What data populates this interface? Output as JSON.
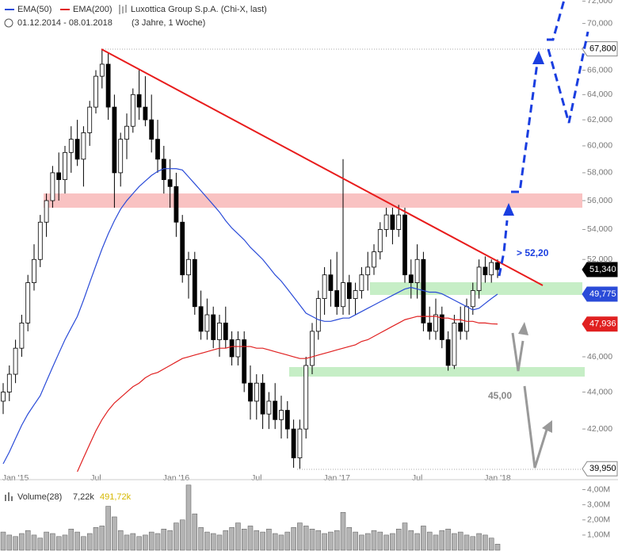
{
  "chart_data": [
    {
      "type": "candlestick",
      "title": "Luxottica Group S.p.A. (Chi-X, last)",
      "subtitle": "01.12.2014 - 08.01.2018",
      "period": "(3 Jahre, 1 Woche)",
      "categories": [
        null,
        null,
        "Jan '15",
        null,
        null,
        null,
        null,
        null,
        null,
        null,
        null,
        null,
        null,
        null,
        null,
        "Jul",
        null,
        null,
        null,
        null,
        null,
        null,
        null,
        null,
        null,
        null,
        null,
        null,
        "Jan '16",
        null,
        null,
        null,
        null,
        null,
        null,
        null,
        null,
        null,
        null,
        null,
        null,
        "Jul",
        null,
        null,
        null,
        null,
        null,
        null,
        null,
        null,
        null,
        null,
        null,
        null,
        "Jan '17",
        null,
        null,
        null,
        null,
        null,
        null,
        null,
        null,
        null,
        null,
        null,
        null,
        "Jul",
        null,
        null,
        null,
        null,
        null,
        null,
        null,
        null,
        null,
        null,
        null,
        null,
        "Jan '18"
      ],
      "open": [
        43.5,
        44,
        45,
        46.5,
        48,
        50.5,
        52,
        54.5,
        56,
        58,
        57.5,
        59.5,
        60.5,
        59,
        61,
        63,
        65.5,
        66.5,
        63,
        58,
        60.5,
        61.5,
        64,
        63,
        62,
        60.5,
        59,
        57.5,
        57,
        54.5,
        51,
        52,
        49,
        47.5,
        48.5,
        47,
        48,
        47,
        46,
        47,
        44.5,
        43.5,
        44.5,
        42.8,
        43.5,
        42.5,
        43,
        42,
        40.5,
        42,
        45.5,
        47.5,
        49.5,
        51,
        50,
        49,
        50.5,
        49.5,
        50,
        51,
        51.5,
        52.5,
        54,
        55,
        54,
        55,
        51,
        50.5,
        52,
        48,
        47.5,
        48.5,
        47,
        45.5,
        48,
        47.5,
        49,
        50,
        51.5,
        51,
        51.8
      ],
      "high": [
        44.5,
        45.5,
        47,
        48.5,
        51,
        53,
        55,
        56.5,
        58.5,
        59.5,
        60,
        61.5,
        62,
        61.5,
        63.5,
        66,
        67.8,
        67.5,
        64,
        61,
        62.5,
        64.5,
        66,
        65.5,
        64,
        62,
        60,
        59,
        58,
        55,
        52.5,
        52.5,
        50,
        49.5,
        49,
        48.5,
        49,
        47.5,
        47.5,
        47.5,
        45.5,
        45,
        45,
        44,
        44.5,
        43.8,
        43.5,
        42.5,
        42.5,
        46,
        48,
        50,
        51.5,
        52,
        52.5,
        59,
        51,
        50.5,
        51.5,
        52.5,
        53,
        54.5,
        55.5,
        55.5,
        55.7,
        55.5,
        52,
        53,
        52.5,
        49,
        49.5,
        49,
        47.5,
        48.5,
        49,
        49.5,
        50.5,
        52,
        52.2,
        52,
        52
      ],
      "low": [
        42.8,
        43.5,
        44.5,
        46,
        47.5,
        50,
        51.5,
        53.5,
        55.5,
        56,
        56.5,
        58,
        58.5,
        57,
        60,
        62.5,
        64.5,
        62,
        55.5,
        57,
        59,
        61,
        62,
        61.5,
        59.5,
        58,
        56.5,
        55.5,
        53.5,
        50.5,
        49.5,
        48.5,
        47,
        47,
        46.5,
        46,
        46.5,
        45.5,
        45.5,
        44,
        42.5,
        42.5,
        42,
        42,
        42,
        41.5,
        41.5,
        40,
        39.95,
        41.5,
        45,
        47,
        48.5,
        49,
        48.5,
        48.5,
        48.5,
        48.5,
        49.5,
        50,
        51,
        52,
        53.5,
        53,
        53.5,
        50.5,
        49.5,
        49.5,
        47.5,
        47,
        47,
        46.5,
        45.2,
        45.3,
        47,
        47,
        48.5,
        49.5,
        50.5,
        50.5,
        50.8
      ],
      "close": [
        44,
        45,
        46.5,
        48,
        50.5,
        52,
        54.5,
        56,
        58,
        57.5,
        59.5,
        60.5,
        59,
        61,
        63,
        65.5,
        66.5,
        63,
        58,
        60.5,
        61.5,
        64,
        63,
        62,
        60.5,
        59,
        57.5,
        57,
        54.5,
        51,
        52,
        49,
        47.5,
        48.5,
        47,
        48,
        47,
        46,
        47,
        44.5,
        43.5,
        44.5,
        42.8,
        43.5,
        42.5,
        43,
        42,
        40.5,
        42,
        45.5,
        47.5,
        49.5,
        51,
        50,
        49,
        50.5,
        49.5,
        50,
        51,
        51.5,
        52.5,
        54,
        55,
        54,
        55,
        51,
        50.5,
        52,
        48,
        47.5,
        48.5,
        47,
        45.5,
        48,
        47.5,
        49,
        50,
        51.5,
        51,
        51.8,
        51.34
      ],
      "up_color": "#ffffff",
      "down_color": "#000000",
      "series": [
        {
          "name": "EMA(50)",
          "color": "#2a4bd8",
          "values": [
            40.2,
            40.8,
            41.5,
            42.2,
            42.8,
            43.3,
            43.8,
            44.6,
            45.4,
            46.2,
            47.0,
            47.7,
            48.4,
            49.4,
            50.5,
            51.6,
            52.7,
            53.7,
            54.6,
            55.4,
            56.0,
            56.5,
            57.0,
            57.4,
            57.8,
            58.1,
            58.3,
            58.3,
            58.3,
            58.2,
            57.7,
            57.2,
            56.7,
            56.2,
            55.7,
            55.2,
            54.6,
            54.1,
            53.7,
            53.3,
            52.8,
            52.4,
            52.0,
            51.5,
            51.0,
            50.6,
            50.1,
            49.6,
            49.1,
            48.6,
            48.4,
            48.2,
            48.1,
            48.1,
            48.2,
            48.3,
            48.3,
            48.5,
            48.7,
            48.9,
            49.1,
            49.3,
            49.5,
            49.7,
            49.9,
            50.1,
            50.2,
            50.1,
            50.0,
            49.9,
            49.9,
            49.8,
            49.6,
            49.4,
            49.2,
            49.0,
            48.8,
            48.9,
            49.2,
            49.5,
            49.775
          ]
        },
        {
          "name": "EMA(200)",
          "color": "#e02020",
          "values": [
            null,
            null,
            null,
            null,
            null,
            null,
            null,
            null,
            null,
            null,
            null,
            null,
            39.8,
            40.5,
            41.2,
            41.9,
            42.5,
            43.0,
            43.4,
            43.7,
            44.0,
            44.3,
            44.5,
            44.8,
            45.0,
            45.1,
            45.3,
            45.5,
            45.7,
            45.9,
            46.0,
            46.1,
            46.2,
            46.3,
            46.4,
            46.5,
            46.5,
            46.6,
            46.6,
            46.6,
            46.6,
            46.5,
            46.5,
            46.4,
            46.3,
            46.2,
            46.1,
            46.0,
            45.9,
            45.9,
            46.0,
            46.1,
            46.2,
            46.3,
            46.4,
            46.5,
            46.6,
            46.7,
            46.9,
            47.0,
            47.2,
            47.4,
            47.6,
            47.8,
            48.0,
            48.2,
            48.3,
            48.4,
            48.4,
            48.4,
            48.4,
            48.3,
            48.3,
            48.2,
            48.2,
            48.1,
            48.1,
            48.0,
            48.0,
            47.95,
            47.936
          ]
        }
      ],
      "ylim": [
        39.8,
        72.1
      ],
      "log_scale": true,
      "yticks": [
        {
          "value": 42,
          "label": "42,000"
        },
        {
          "value": 44,
          "label": "44,000"
        },
        {
          "value": 46,
          "label": "46,000"
        },
        {
          "value": 52,
          "label": "52,000"
        },
        {
          "value": 54,
          "label": "54,000"
        },
        {
          "value": 56,
          "label": "56,000"
        },
        {
          "value": 58,
          "label": "58,000"
        },
        {
          "value": 60,
          "label": "60,000"
        },
        {
          "value": 62,
          "label": "62,000"
        },
        {
          "value": 64,
          "label": "64,000"
        },
        {
          "value": 66,
          "label": "66,000"
        },
        {
          "value": 70,
          "label": "70,000"
        },
        {
          "value": 72,
          "label": "72,000"
        }
      ],
      "price_labels": [
        {
          "value": 67.8,
          "label": "67,800",
          "color": "#ffffff"
        },
        {
          "value": 51.34,
          "label": "51,340",
          "color": "#000000"
        },
        {
          "value": 49.775,
          "label": "49,775",
          "color": "#2a4bd8"
        },
        {
          "value": 47.936,
          "label": "47,936",
          "color": "#e02020"
        },
        {
          "value": 39.95,
          "label": "39,950",
          "color": "#ffffff"
        }
      ],
      "annotations": [
        "> 52,20",
        "45,00"
      ]
    },
    {
      "type": "bar",
      "title": "Volume(28)",
      "readouts": [
        "7,22k",
        "491,72k"
      ],
      "values": [
        1.2,
        1.0,
        0.9,
        1.1,
        1.3,
        1.0,
        0.8,
        1.2,
        1.1,
        0.9,
        1.0,
        1.4,
        1.2,
        0.9,
        1.1,
        1.5,
        1.6,
        2.9,
        2.2,
        1.3,
        1.0,
        1.1,
        0.9,
        1.0,
        1.2,
        1.1,
        1.4,
        1.3,
        1.8,
        2.0,
        4.3,
        2.4,
        1.5,
        1.2,
        1.1,
        1.0,
        1.3,
        1.5,
        1.8,
        1.4,
        1.6,
        1.3,
        1.2,
        1.4,
        1.1,
        1.0,
        1.2,
        1.5,
        1.8,
        1.6,
        1.4,
        1.3,
        1.1,
        1.2,
        1.3,
        2.5,
        1.5,
        1.2,
        1.0,
        1.1,
        1.3,
        1.2,
        1.0,
        1.1,
        1.4,
        1.8,
        1.3,
        1.1,
        1.6,
        1.2,
        1.0,
        1.3,
        1.4,
        1.1,
        1.2,
        1.0,
        0.9,
        1.1,
        1.0,
        0.8,
        0.4
      ],
      "color": "#b4b4b4",
      "ylim": [
        0,
        4.5
      ],
      "yticks": [
        {
          "value": 1,
          "label": "1,00M"
        },
        {
          "value": 2,
          "label": "2,00M"
        },
        {
          "value": 3,
          "label": "3,00M"
        },
        {
          "value": 4,
          "label": "4,00M"
        }
      ]
    }
  ]
}
